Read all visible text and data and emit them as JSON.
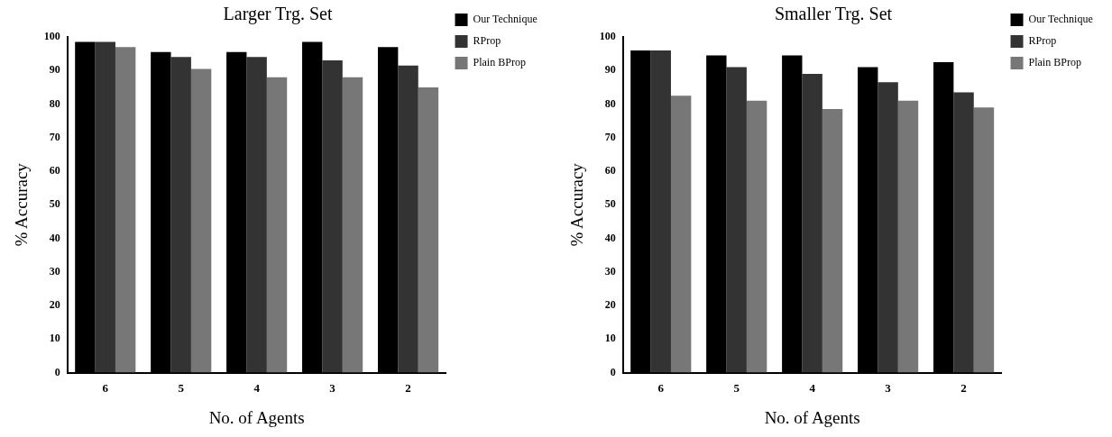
{
  "chart_data": [
    {
      "type": "bar",
      "title": "Larger Trg. Set",
      "xlabel": "No. of Agents",
      "ylabel": "% Accuracy",
      "categories": [
        "6",
        "5",
        "4",
        "3",
        "2"
      ],
      "series": [
        {
          "name": "Our Technique",
          "color": "#000000",
          "values": [
            98.5,
            95.5,
            95.5,
            98.5,
            97
          ]
        },
        {
          "name": "RProp",
          "color": "#333333",
          "values": [
            98.5,
            94,
            94,
            93,
            91.5
          ]
        },
        {
          "name": "Plain BProp",
          "color": "#777777",
          "values": [
            97,
            90.5,
            88,
            88,
            85
          ]
        }
      ],
      "ylim": [
        0,
        100
      ],
      "yticks": [
        0,
        10,
        20,
        30,
        40,
        50,
        60,
        70,
        80,
        90,
        100
      ],
      "grid": false,
      "legend": "top right"
    },
    {
      "type": "bar",
      "title": "Smaller Trg. Set",
      "xlabel": "No. of Agents",
      "ylabel": "% Accuracy",
      "categories": [
        "6",
        "5",
        "4",
        "3",
        "2"
      ],
      "series": [
        {
          "name": "Our Technique",
          "color": "#000000",
          "values": [
            96,
            94.5,
            94.5,
            91,
            92.5
          ]
        },
        {
          "name": "RProp",
          "color": "#333333",
          "values": [
            96,
            91,
            89,
            86.5,
            83.5
          ]
        },
        {
          "name": "Plain BProp",
          "color": "#777777",
          "values": [
            82.5,
            81,
            78.5,
            81,
            79
          ]
        }
      ],
      "ylim": [
        0,
        100
      ],
      "yticks": [
        0,
        10,
        20,
        30,
        40,
        50,
        60,
        70,
        80,
        90,
        100
      ],
      "grid": false,
      "legend": "top right"
    }
  ]
}
